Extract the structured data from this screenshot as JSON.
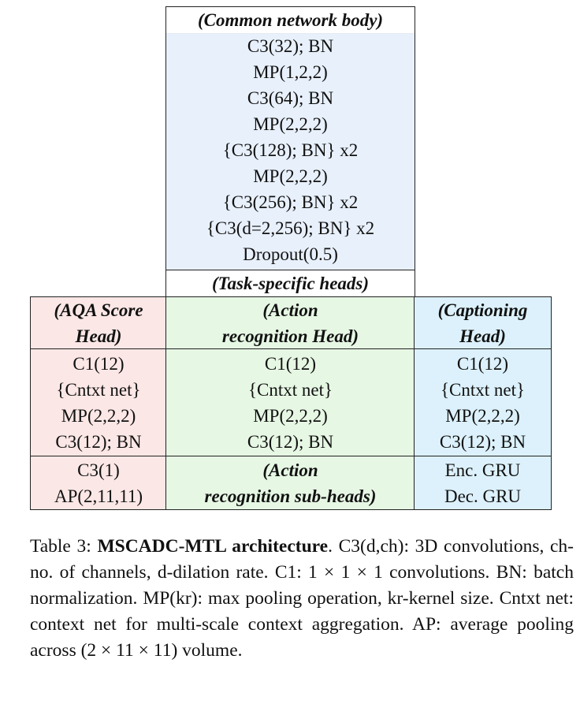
{
  "body": {
    "title": "(Common network body)",
    "layers": [
      "C3(32); BN",
      "MP(1,2,2)",
      "C3(64); BN",
      "MP(2,2,2)",
      "{C3(128); BN} x2",
      "MP(2,2,2)",
      "{C3(256); BN} x2",
      "{C3(d=2,256); BN} x2",
      "Dropout(0.5)"
    ]
  },
  "task_heads_title": "(Task-specific heads)",
  "heads": {
    "aqa": {
      "title": [
        "(AQA Score",
        "Head)"
      ],
      "layers": [
        "C1(12)",
        "{Cntxt net}",
        "MP(2,2,2)",
        "C3(12); BN"
      ],
      "tail": [
        "C3(1)",
        "AP(2,11,11)"
      ]
    },
    "action": {
      "title": [
        "(Action",
        "recognition Head)"
      ],
      "layers": [
        "C1(12)",
        "{Cntxt net}",
        "MP(2,2,2)",
        "C3(12); BN"
      ],
      "tail": [
        "(Action",
        "recognition sub-heads)"
      ]
    },
    "caption": {
      "title": [
        "(Captioning",
        "Head)"
      ],
      "layers": [
        "C1(12)",
        "{Cntxt net}",
        "MP(2,2,2)",
        "C3(12); BN"
      ],
      "tail": [
        "Enc. GRU",
        "Dec. GRU"
      ]
    }
  },
  "caption": {
    "prefix": "Table 3: ",
    "bold": "MSCADC-MTL architecture",
    "text": ". C3(d,ch): 3D convolutions, ch-no. of channels, d-dilation rate. C1: 1 × 1 × 1 convolutions. BN: batch normalization. MP(kr): max pooling operation, kr-kernel size. Cntxt net: context net for multi-scale context aggregation. AP: average pooling across (2 × 11 × 11) volume."
  },
  "colors": {
    "body_bg": "#e8f0fb",
    "aqa_bg": "#fbe7e5",
    "action_bg": "#e6f7e4",
    "caption_bg": "#dcf1fb"
  }
}
